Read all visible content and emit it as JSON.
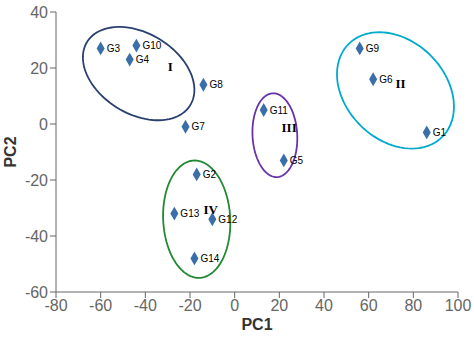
{
  "chart_data": {
    "type": "scatter",
    "xlabel": "PC1",
    "ylabel": "PC2",
    "labels": [
      "G1",
      "G2",
      "G3",
      "G4",
      "G5",
      "G6",
      "G7",
      "G8",
      "G9",
      "G10",
      "G11",
      "G12",
      "G13",
      "G14"
    ],
    "x": [
      86,
      -17,
      -60,
      -47,
      22,
      62,
      -22,
      -14,
      56,
      -44,
      13,
      -10,
      -27,
      -18
    ],
    "values": [
      -3,
      -18,
      27,
      23,
      -13,
      16,
      -1,
      14,
      27,
      28,
      5,
      -34,
      -32,
      -48
    ],
    "color": "#3a6ea8",
    "marker": "diamond",
    "ellipses": [
      {
        "cx": -43,
        "cy": 18,
        "width": 52,
        "height": 30,
        "angle": -20,
        "color": "#2a4070"
      },
      {
        "cx": 72,
        "cy": 12,
        "width": 55,
        "height": 38,
        "angle": -25,
        "color": "#00aacc"
      },
      {
        "cx": 18,
        "cy": -4,
        "width": 20,
        "height": 30,
        "angle": 5,
        "color": "#6633aa"
      },
      {
        "cx": -17,
        "cy": -34,
        "width": 30,
        "height": 42,
        "angle": 5,
        "color": "#228833"
      }
    ],
    "annotations": [
      {
        "text": "I",
        "x": -30,
        "y": 19
      },
      {
        "text": "II",
        "x": 72,
        "y": 13
      },
      {
        "text": "III",
        "x": 21,
        "y": -3
      },
      {
        "text": "IV",
        "x": -14,
        "y": -32
      }
    ],
    "xlim": [
      -80,
      100
    ],
    "ylim": [
      -60,
      40
    ],
    "xticks": [
      -80,
      -60,
      -40,
      -20,
      0,
      20,
      40,
      60,
      80,
      100
    ],
    "yticks": [
      -60,
      -40,
      -20,
      0,
      20,
      40
    ],
    "grid": false
  }
}
